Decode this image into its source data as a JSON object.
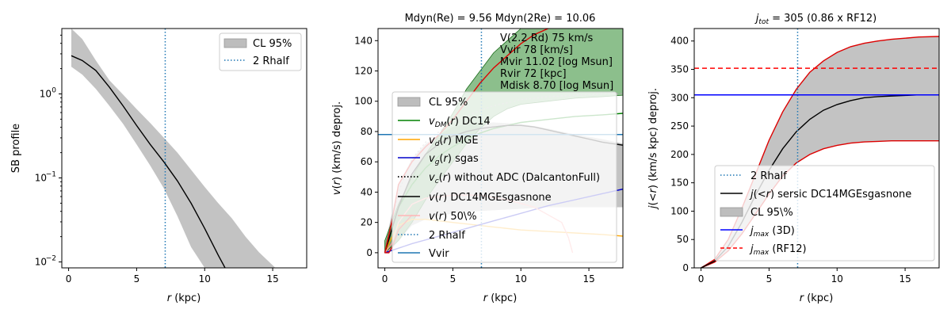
{
  "chart_data": [
    {
      "type": "line",
      "title": "",
      "xlabel": "r (kpc)",
      "ylabel": "SB profile",
      "xlim": [
        -0.5,
        17.5
      ],
      "ylim": [
        0.0085,
        6.0
      ],
      "yscale": "log",
      "xticks": [
        0,
        5,
        10,
        15
      ],
      "yticks": [
        {
          "v": 1,
          "label": "10^0"
        },
        {
          "v": 0.1,
          "label": "10^-1"
        },
        {
          "v": 0.01,
          "label": "10^-2"
        }
      ],
      "grid": false,
      "legend_position": "upper right",
      "legend": [
        {
          "label": "CL 95%",
          "style": "band",
          "color": "#bdbdbd"
        },
        {
          "label": "2 Rhalf",
          "style": "dotted",
          "color": "#1f77b4"
        }
      ],
      "vline": 7.1,
      "series": [
        {
          "role": "band",
          "color": "#bdbdbd",
          "x": [
            0.2,
            1,
            2,
            3,
            4,
            5,
            6,
            7,
            8,
            9,
            10,
            11,
            12,
            13,
            14,
            15.2
          ],
          "lower": [
            2.1,
            1.7,
            1.15,
            0.72,
            0.44,
            0.25,
            0.14,
            0.075,
            0.035,
            0.015,
            0.0085,
            0.0085,
            0.0085,
            0.0085,
            0.0085,
            0.0085
          ],
          "upper": [
            6.0,
            4.5,
            2.5,
            1.45,
            0.98,
            0.66,
            0.45,
            0.3,
            0.2,
            0.125,
            0.078,
            0.05,
            0.033,
            0.02,
            0.013,
            0.0085
          ]
        },
        {
          "role": "line",
          "color": "#000000",
          "x": [
            0.2,
            1,
            2,
            3,
            4,
            5,
            6,
            7,
            8,
            9,
            10,
            11,
            11.5
          ],
          "y": [
            2.85,
            2.5,
            1.9,
            1.2,
            0.72,
            0.42,
            0.25,
            0.155,
            0.092,
            0.05,
            0.025,
            0.012,
            0.0085
          ]
        }
      ]
    },
    {
      "type": "line",
      "title": "Mdyn(Re) = 9.56  Mdyn(2Re) = 10.06",
      "xlabel": "r (kpc)",
      "ylabel": "v(r) (km/s) deproj.",
      "xlim": [
        -0.5,
        17.5
      ],
      "ylim": [
        -10,
        148
      ],
      "xticks": [
        0,
        5,
        10,
        15
      ],
      "yticks": [
        0,
        20,
        40,
        60,
        80,
        100,
        120,
        140
      ],
      "grid": false,
      "legend_position": "lower center",
      "annotation": [
        "V(2.2 Rd) 75 km/s",
        "Vvir 78 [km/s]",
        "Mvir 11.02 [log Msun]",
        "Rvir 72 [kpc]",
        "Mdisk 8.70 [log Msun]"
      ],
      "legend": [
        {
          "label": "CL 95%",
          "style": "band",
          "color": "#bdbdbd"
        },
        {
          "label": "v_DM(r) DC14",
          "style": "solid",
          "color": "#008000"
        },
        {
          "label": "v_d(r) MGE",
          "style": "solid",
          "color": "#ffa500"
        },
        {
          "label": "v_g(r) sgas",
          "style": "solid",
          "color": "#0000cc"
        },
        {
          "label": "v_c(r) without ADC (DalcantonFull)",
          "style": "dotted",
          "color": "#000000"
        },
        {
          "label": "v(r) DC14MGEsgasnone",
          "style": "solid",
          "color": "#000000"
        },
        {
          "label": "v(r) 50\\%",
          "style": "solid",
          "color": "#ffb6b6"
        },
        {
          "label": "2 Rhalf",
          "style": "dotted",
          "color": "#1f77b4"
        },
        {
          "label": "Vvir",
          "style": "solid",
          "color": "#1f77b4"
        }
      ],
      "vline": 7.1,
      "hline": 78,
      "series": [
        {
          "name": "CL 95%",
          "role": "band",
          "color": "#bdbdbd",
          "x": [
            0,
            0.5,
            1,
            2,
            3,
            4,
            5,
            6,
            8,
            10,
            12,
            14,
            16,
            17.5
          ],
          "lower": [
            0,
            2,
            8,
            18,
            22,
            24,
            26,
            27,
            28,
            29,
            30,
            30,
            30,
            30
          ],
          "upper": [
            5,
            25,
            45,
            62,
            72,
            78,
            83,
            85,
            86,
            85,
            82,
            78,
            75,
            72
          ]
        },
        {
          "name": "v_DM(r) DC14",
          "role": "band",
          "color": "#2e8b2e",
          "x": [
            0,
            1,
            2,
            3,
            4,
            5,
            6,
            7,
            8,
            9,
            10,
            12,
            14,
            16,
            17.5
          ],
          "lower": [
            0,
            8,
            20,
            35,
            48,
            60,
            72,
            82,
            90,
            95,
            98,
            100,
            102,
            103,
            104
          ],
          "upper": [
            8,
            32,
            50,
            65,
            78,
            92,
            108,
            120,
            132,
            140,
            148,
            148,
            148,
            148,
            148
          ]
        },
        {
          "name": "v_DM(r) DC14",
          "role": "line",
          "color": "#008000",
          "x": [
            0,
            1,
            2,
            3,
            4,
            5,
            6,
            7,
            8,
            10,
            12,
            14,
            16,
            17.5
          ],
          "y": [
            0,
            30,
            45,
            56,
            64,
            70,
            75,
            79,
            82,
            86,
            88,
            90,
            91,
            92
          ]
        },
        {
          "name": "v_d(r) MGE",
          "role": "line",
          "color": "#ffa500",
          "x": [
            0,
            0.5,
            1,
            2,
            3,
            4,
            5,
            6,
            8,
            10,
            12,
            14,
            16,
            17.5
          ],
          "y": [
            0,
            10,
            18,
            22,
            22,
            21,
            20,
            19,
            17,
            15,
            14,
            13,
            12,
            11
          ]
        },
        {
          "name": "v_g(r) sgas",
          "role": "line",
          "color": "#0000cc",
          "x": [
            0,
            1,
            2,
            4,
            6,
            8,
            10,
            12,
            14,
            16,
            17.5
          ],
          "y": [
            0,
            3,
            6,
            11,
            16,
            21,
            26,
            31,
            35,
            39,
            42
          ]
        },
        {
          "name": "v_c(r) without ADC (DalcantonFull)",
          "role": "dotted",
          "color": "#aaaaaa",
          "x": [
            0,
            1,
            2,
            3,
            4,
            5,
            6,
            7,
            8,
            10,
            12,
            14,
            16,
            17.5
          ],
          "y": [
            0,
            40,
            62,
            73,
            80,
            86,
            90,
            94,
            97,
            101,
            103,
            104,
            105,
            105
          ]
        },
        {
          "name": "v(r) DC14MGEsgasnone",
          "role": "line",
          "color": "#000000",
          "x": [
            0,
            1,
            2,
            3,
            4,
            5,
            6,
            7,
            8,
            9,
            10,
            11,
            12,
            13,
            14,
            15,
            16,
            17.5
          ],
          "y": [
            0,
            30,
            52,
            65,
            72,
            77,
            80,
            82,
            83,
            84,
            84,
            83,
            81,
            79,
            77,
            75,
            73,
            71
          ]
        },
        {
          "name": "v(r) 50\\%",
          "role": "line",
          "color": "#ff9a9a",
          "x": [
            0,
            0.5,
            1,
            2,
            3,
            5,
            7,
            9,
            11,
            13,
            13.5,
            13.8
          ],
          "y": [
            0,
            6,
            20,
            32,
            36,
            38,
            38,
            35,
            30,
            20,
            10,
            0
          ]
        },
        {
          "name": "v(r) upper",
          "role": "line",
          "color": "#dd0000",
          "x": [
            0,
            0.5,
            1,
            2,
            3,
            4,
            5,
            6,
            7,
            8,
            9,
            10,
            11,
            12
          ],
          "y": [
            0,
            20,
            45,
            60,
            70,
            78,
            88,
            100,
            112,
            122,
            130,
            138,
            144,
            148
          ]
        },
        {
          "name": "v(r) lower",
          "role": "line",
          "color": "#dd0000",
          "x": [
            0,
            0.3,
            0.6,
            1,
            2
          ],
          "y": [
            0,
            0,
            5,
            15,
            25
          ]
        }
      ]
    },
    {
      "type": "line",
      "title": "j_tot = 305 (0.86 x RF12)",
      "xlabel": "r (kpc)",
      "ylabel": "j(<r) (km/s kpc) deproj.",
      "xlim": [
        -0.5,
        17.5
      ],
      "ylim": [
        0,
        422
      ],
      "xticks": [
        0,
        5,
        10,
        15
      ],
      "yticks": [
        0,
        50,
        100,
        150,
        200,
        250,
        300,
        350,
        400
      ],
      "grid": false,
      "legend_position": "lower right",
      "legend": [
        {
          "label": "2 Rhalf",
          "style": "dotted",
          "color": "#1f77b4"
        },
        {
          "label": "j(<r) sersic DC14MGEsgasnone",
          "style": "solid",
          "color": "#000000"
        },
        {
          "label": "CL 95\\%",
          "style": "band",
          "color": "#bdbdbd"
        },
        {
          "label": "j_max (3D)",
          "style": "solid",
          "color": "#0000ff"
        },
        {
          "label": "j_max (RF12)",
          "style": "dashed",
          "color": "#ff0000"
        }
      ],
      "vline": 7.1,
      "hlines": [
        {
          "y": 305,
          "color": "#0000ff",
          "style": "solid"
        },
        {
          "y": 352,
          "color": "#ff0000",
          "style": "dashed"
        }
      ],
      "series": [
        {
          "name": "CL 95\\%",
          "role": "band",
          "color": "#bdbdbd",
          "x": [
            0,
            1,
            2,
            3,
            4,
            5,
            6,
            7,
            8,
            9,
            10,
            11,
            12,
            13,
            14,
            15,
            16,
            17.5
          ],
          "lower": [
            0,
            10,
            30,
            60,
            95,
            130,
            162,
            185,
            200,
            210,
            216,
            220,
            222,
            223,
            224,
            224,
            224,
            224
          ],
          "upper": [
            0,
            15,
            50,
            105,
            165,
            225,
            275,
            315,
            345,
            365,
            380,
            390,
            396,
            400,
            403,
            405,
            407,
            408
          ]
        },
        {
          "name": "CL upper edge",
          "role": "line",
          "color": "#dd0000",
          "x": [
            0,
            1,
            2,
            3,
            4,
            5,
            6,
            7,
            8,
            9,
            10,
            11,
            12,
            13,
            14,
            15,
            16,
            17.5
          ],
          "y": [
            0,
            15,
            50,
            105,
            165,
            225,
            275,
            315,
            345,
            365,
            380,
            390,
            396,
            400,
            403,
            405,
            407,
            408
          ]
        },
        {
          "name": "CL lower edge",
          "role": "line",
          "color": "#dd0000",
          "x": [
            0,
            1,
            2,
            3,
            4,
            5,
            6,
            7,
            8,
            9,
            10,
            11,
            12,
            13,
            14,
            15,
            16,
            17.5
          ],
          "y": [
            0,
            10,
            30,
            60,
            95,
            130,
            162,
            185,
            200,
            210,
            216,
            220,
            222,
            223,
            224,
            224,
            224,
            224
          ]
        },
        {
          "name": "j(<r) sersic DC14MGEsgasnone",
          "role": "line",
          "color": "#000000",
          "x": [
            0,
            1,
            2,
            3,
            4,
            5,
            6,
            7,
            8,
            9,
            10,
            11,
            12,
            13,
            14,
            15,
            16,
            17.5
          ],
          "y": [
            0,
            12,
            38,
            80,
            128,
            172,
            210,
            240,
            262,
            278,
            288,
            295,
            300,
            302,
            303,
            304,
            305,
            305
          ]
        }
      ]
    }
  ]
}
